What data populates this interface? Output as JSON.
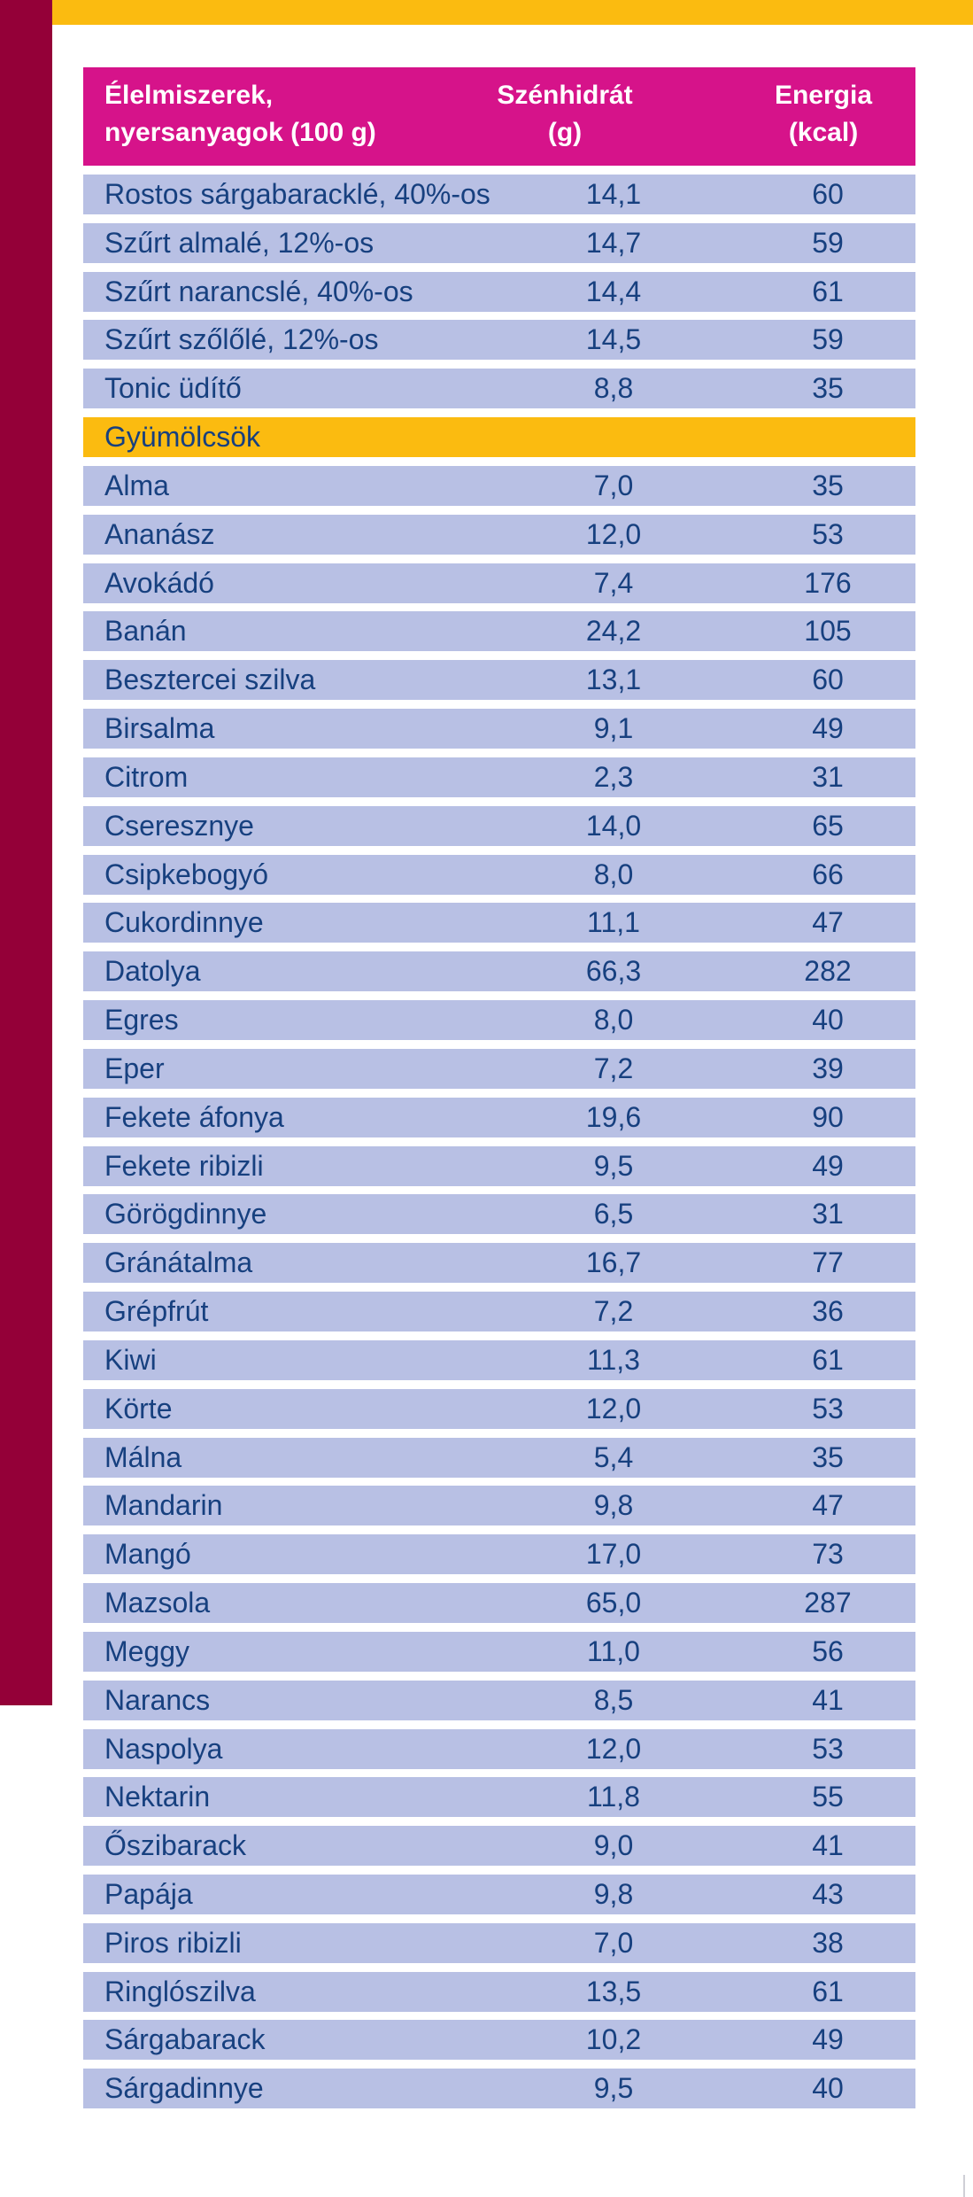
{
  "colors": {
    "header_bg": "#d6138a",
    "row_bg": "#b8c0e4",
    "section_bg": "#fbbb10",
    "text": "#17407f",
    "side_bar": "#940038",
    "top_bar": "#fbbb10"
  },
  "table": {
    "headers": {
      "name": [
        "Élelmiszerek,",
        "nyersanyagok (100 g)"
      ],
      "carb": [
        "Szénhidrát",
        "(g)"
      ],
      "kcal": [
        "Energia",
        "(kcal)"
      ]
    },
    "rows": [
      {
        "name": "Rostos sárgabaracklé, 40%-os",
        "carb": "14,1",
        "kcal": "60"
      },
      {
        "name": "Szűrt almalé, 12%-os",
        "carb": "14,7",
        "kcal": "59"
      },
      {
        "name": "Szűrt narancslé, 40%-os",
        "carb": "14,4",
        "kcal": "61"
      },
      {
        "name": "Szűrt szőlőlé, 12%-os",
        "carb": "14,5",
        "kcal": "59"
      },
      {
        "name": "Tonic üdítő",
        "carb": "8,8",
        "kcal": "35"
      },
      {
        "name": "Gyümölcsök",
        "carb": "",
        "kcal": "",
        "section": true
      },
      {
        "name": "Alma",
        "carb": "7,0",
        "kcal": "35"
      },
      {
        "name": "Ananász",
        "carb": "12,0",
        "kcal": "53"
      },
      {
        "name": "Avokádó",
        "carb": "7,4",
        "kcal": "176"
      },
      {
        "name": "Banán",
        "carb": "24,2",
        "kcal": "105"
      },
      {
        "name": "Besztercei szilva",
        "carb": "13,1",
        "kcal": "60"
      },
      {
        "name": "Birsalma",
        "carb": "9,1",
        "kcal": "49"
      },
      {
        "name": "Citrom",
        "carb": "2,3",
        "kcal": "31"
      },
      {
        "name": "Cseresznye",
        "carb": "14,0",
        "kcal": "65"
      },
      {
        "name": "Csipkebogyó",
        "carb": "8,0",
        "kcal": "66"
      },
      {
        "name": "Cukordinnye",
        "carb": "11,1",
        "kcal": "47"
      },
      {
        "name": "Datolya",
        "carb": "66,3",
        "kcal": "282"
      },
      {
        "name": "Egres",
        "carb": "8,0",
        "kcal": "40"
      },
      {
        "name": "Eper",
        "carb": "7,2",
        "kcal": "39"
      },
      {
        "name": "Fekete áfonya",
        "carb": "19,6",
        "kcal": "90"
      },
      {
        "name": "Fekete ribizli",
        "carb": "9,5",
        "kcal": "49"
      },
      {
        "name": "Görögdinnye",
        "carb": "6,5",
        "kcal": "31"
      },
      {
        "name": "Gránátalma",
        "carb": "16,7",
        "kcal": "77"
      },
      {
        "name": "Grépfrút",
        "carb": "7,2",
        "kcal": "36"
      },
      {
        "name": "Kiwi",
        "carb": "11,3",
        "kcal": "61"
      },
      {
        "name": "Körte",
        "carb": "12,0",
        "kcal": "53"
      },
      {
        "name": "Málna",
        "carb": "5,4",
        "kcal": "35"
      },
      {
        "name": "Mandarin",
        "carb": "9,8",
        "kcal": "47"
      },
      {
        "name": "Mangó",
        "carb": "17,0",
        "kcal": "73"
      },
      {
        "name": "Mazsola",
        "carb": "65,0",
        "kcal": "287"
      },
      {
        "name": "Meggy",
        "carb": "11,0",
        "kcal": "56"
      },
      {
        "name": "Narancs",
        "carb": "8,5",
        "kcal": "41"
      },
      {
        "name": "Naspolya",
        "carb": "12,0",
        "kcal": "53"
      },
      {
        "name": "Nektarin",
        "carb": "11,8",
        "kcal": "55"
      },
      {
        "name": "Őszibarack",
        "carb": "9,0",
        "kcal": "41"
      },
      {
        "name": "Papája",
        "carb": "9,8",
        "kcal": "43"
      },
      {
        "name": "Piros ribizli",
        "carb": "7,0",
        "kcal": "38"
      },
      {
        "name": "Ringlószilva",
        "carb": "13,5",
        "kcal": "61"
      },
      {
        "name": "Sárgabarack",
        "carb": "10,2",
        "kcal": "49"
      },
      {
        "name": "Sárgadinnye",
        "carb": "9,5",
        "kcal": "40"
      }
    ]
  }
}
